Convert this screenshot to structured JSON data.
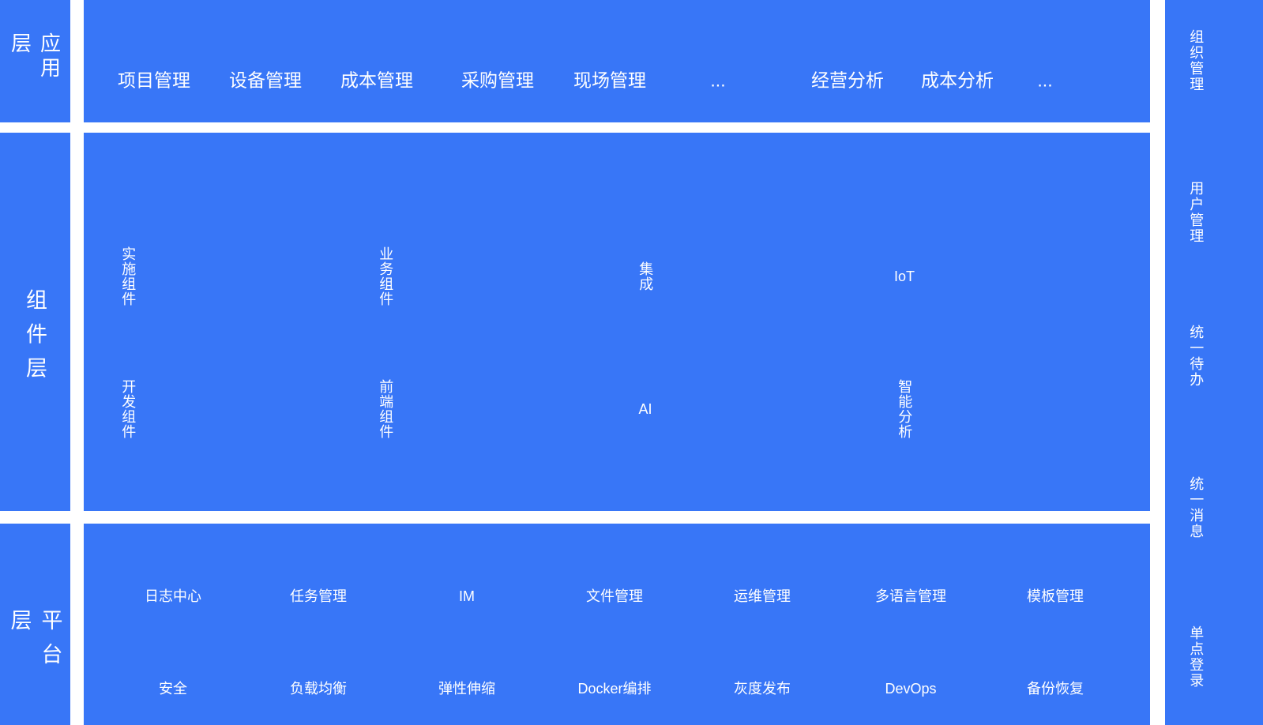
{
  "colors": {
    "panel_blue": "#3876f7",
    "text": "#ffffff",
    "background": "#ffffff"
  },
  "layers": {
    "application": {
      "label": "应用层",
      "items": [
        "项目管理",
        "设备管理",
        "成本管理",
        "采购管理",
        "现场管理",
        "...",
        "经营分析",
        "成本分析",
        "..."
      ]
    },
    "component": {
      "label": "组件层",
      "row1": [
        "实施组件",
        "业务组件",
        "集成",
        "IoT"
      ],
      "row2": [
        "开发组件",
        "前端组件",
        "AI",
        "智能分析"
      ]
    },
    "platform": {
      "label": "平台层",
      "row1": [
        "日志中心",
        "任务管理",
        "IM",
        "文件管理",
        "运维管理",
        "多语言管理",
        "模板管理"
      ],
      "row2": [
        "安全",
        "负载均衡",
        "弹性伸缩",
        "Docker编排",
        "灰度发布",
        "DevOps",
        "备份恢复"
      ]
    }
  },
  "right_sidebar": {
    "items": [
      "组织管理",
      "用户管理",
      "统一待办",
      "统一消息",
      "单点登录"
    ]
  }
}
